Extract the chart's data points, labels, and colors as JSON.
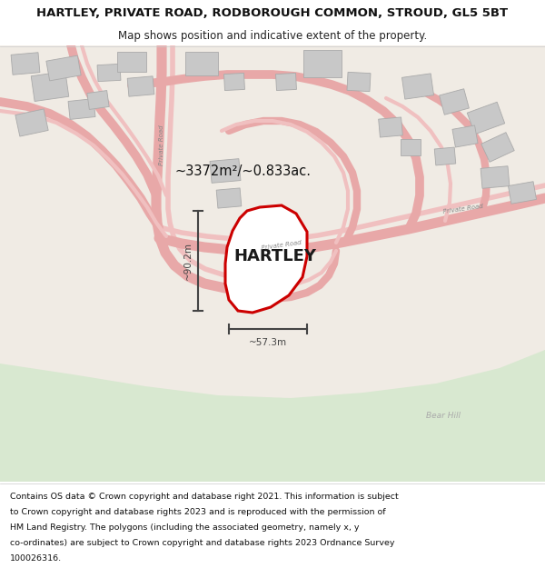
{
  "title": "HARTLEY, PRIVATE ROAD, RODBOROUGH COMMON, STROUD, GL5 5BT",
  "subtitle": "Map shows position and indicative extent of the property.",
  "footer_lines": [
    "Contains OS data © Crown copyright and database right 2021. This information is subject",
    "to Crown copyright and database rights 2023 and is reproduced with the permission of",
    "HM Land Registry. The polygons (including the associated geometry, namely x, y",
    "co-ordinates) are subject to Crown copyright and database rights 2023 Ordnance Survey",
    "100026316."
  ],
  "area_label": "~3372m²/~0.833ac.",
  "width_label": "~57.3m",
  "height_label": "~90.2m",
  "property_name": "HARTLEY",
  "bg_color": "#f0ebe4",
  "green_color": "#d8e8d0",
  "title_bg": "#ffffff",
  "footer_bg": "#ffffff",
  "red_color": "#cc0000",
  "road_color": "#e8a8a8",
  "road_color2": "#f0c0c0",
  "building_color": "#c8c8c8",
  "building_edge": "#aaaaaa",
  "property_fill": "#ffffff",
  "dim_color": "#444444",
  "road_label_color": "#888888",
  "bear_hill_color": "#aaaaaa"
}
